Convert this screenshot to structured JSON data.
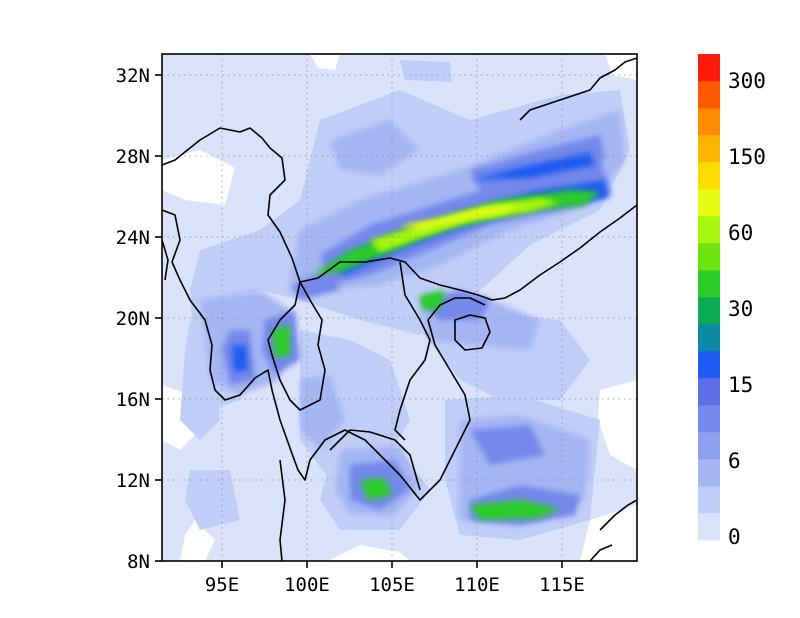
{
  "map": {
    "lat_ticks": [
      "32N",
      "28N",
      "24N",
      "20N",
      "16N",
      "12N",
      "8N"
    ],
    "lon_ticks": [
      "95E",
      "100E",
      "105E",
      "110E",
      "115E"
    ],
    "gridlines": true
  },
  "colorbar": {
    "colors": [
      "#dbe3fb",
      "#c0cdf7",
      "#a5b6f3",
      "#8c9ff0",
      "#7588ec",
      "#5f6ee6",
      "#1f5cf2",
      "#0d8aa8",
      "#0cab53",
      "#2ccc29",
      "#6ee40e",
      "#a9f60d",
      "#e8fb13",
      "#ffdc00",
      "#ffb400",
      "#ff8c00",
      "#ff5a00",
      "#ff1a0a"
    ],
    "labels": [
      "0",
      "6",
      "15",
      "30",
      "60",
      "150",
      "300"
    ]
  }
}
